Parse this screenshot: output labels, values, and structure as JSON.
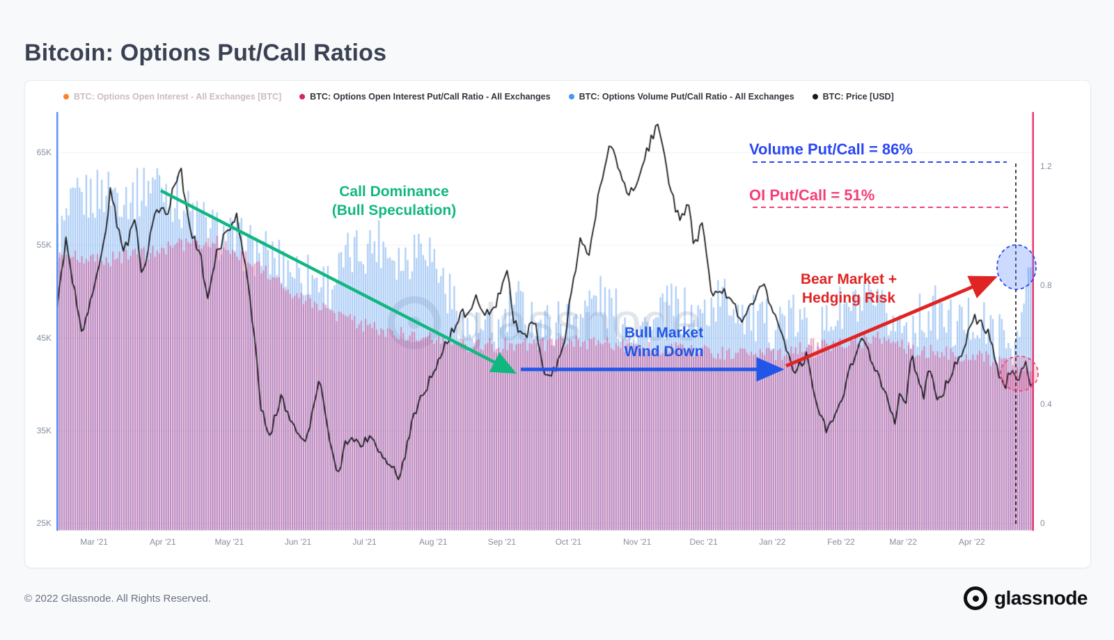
{
  "page": {
    "title": "Bitcoin: Options Put/Call Ratios",
    "footer_copyright": "© 2022 Glassnode. All Rights Reserved.",
    "brand": "glassnode",
    "watermark": "glassnode"
  },
  "legend": {
    "items": [
      {
        "label": "BTC: Options Open Interest - All Exchanges [BTC]",
        "color": "#ff7f2a",
        "muted": true
      },
      {
        "label": "BTC: Options Open Interest Put/Call Ratio - All Exchanges",
        "color": "#d6246e",
        "muted": false
      },
      {
        "label": "BTC: Options Volume Put/Call Ratio - All Exchanges",
        "color": "#4596f7",
        "muted": false
      },
      {
        "label": "BTC: Price [USD]",
        "color": "#17191c",
        "muted": false
      }
    ]
  },
  "axes": {
    "left": {
      "ticks": [
        "65K",
        "55K",
        "45K",
        "35K",
        "25K"
      ],
      "values": [
        65,
        55,
        45,
        35,
        25
      ]
    },
    "right": {
      "ticks": [
        "1.2",
        "0.8",
        "0.4",
        "0"
      ],
      "values": [
        1.2,
        0.8,
        0.4,
        0
      ]
    },
    "months": [
      "Mar '21",
      "Apr '21",
      "May '21",
      "Jun '21",
      "Jul '21",
      "Aug '21",
      "Sep '21",
      "Oct '21",
      "Nov '21",
      "Dec '21",
      "Jan '22",
      "Feb '22",
      "Mar '22",
      "Apr '22"
    ]
  },
  "annotations": {
    "call_dominance": {
      "line1": "Call Dominance",
      "line2": "(Bull Speculation)",
      "color": "#10b77f"
    },
    "bull_wind_down": {
      "line1": "Bull Market",
      "line2": "Wind Down",
      "color": "#2156e8"
    },
    "bear_market": {
      "line1": "Bear Market +",
      "line2": "Hedging Risk",
      "color": "#e02424"
    },
    "volume_label": {
      "text": "Volume Put/Call = 86%",
      "color": "#2946f5"
    },
    "oi_label": {
      "text": "OI Put/Call = 51%",
      "color": "#f43f75"
    }
  },
  "colors": {
    "axis_left": "#5b8ff9",
    "axis_right": "#e8356d",
    "grid": "#edf0f5",
    "price_line": "#17191c",
    "volume_fill": "rgba(77,148,235,0.50)",
    "oi_fill": "rgba(214,36,110,0.45)"
  },
  "chart_data": {
    "type": "mixed",
    "x_axis": {
      "labels": [
        "Mar '21",
        "Apr '21",
        "May '21",
        "Jun '21",
        "Jul '21",
        "Aug '21",
        "Sep '21",
        "Oct '21",
        "Nov '21",
        "Dec '21",
        "Jan '22",
        "Feb '22",
        "Mar '22",
        "Apr '22"
      ],
      "start": "mid-Feb 2021",
      "end": "late Apr 2022"
    },
    "y_left": {
      "label": "BTC Price [USD]",
      "ticks": [
        "25K",
        "35K",
        "45K",
        "55K",
        "65K"
      ],
      "range_thousForUSD": [
        25,
        68.5
      ]
    },
    "y_right": {
      "label": "Put/Call Ratio",
      "ticks": [
        0,
        0.4,
        0.8,
        1.2
      ],
      "range": [
        0,
        1.33
      ]
    },
    "legend_position": "top",
    "grid": true,
    "highlights": {
      "volume_put_call_pct": 86,
      "oi_put_call_pct": 51
    },
    "series": [
      {
        "id": "open_interest",
        "name": "BTC: Options Open Interest - All Exchanges [BTC]",
        "type": "bar",
        "color": "#ff7f2a",
        "visible": false
      },
      {
        "id": "price",
        "name": "BTC: Price [USD]",
        "type": "line",
        "color": "#17191c",
        "unit": "K USD",
        "keyframes": [
          [
            0,
            48
          ],
          [
            0.009,
            55.5
          ],
          [
            0.018,
            50
          ],
          [
            0.025,
            45.5
          ],
          [
            0.035,
            49
          ],
          [
            0.046,
            54
          ],
          [
            0.055,
            61
          ],
          [
            0.062,
            57
          ],
          [
            0.069,
            54.5
          ],
          [
            0.08,
            57.5
          ],
          [
            0.087,
            51.5
          ],
          [
            0.101,
            59
          ],
          [
            0.113,
            58.5
          ],
          [
            0.126,
            63.5
          ],
          [
            0.138,
            56
          ],
          [
            0.147,
            54
          ],
          [
            0.154,
            49.5
          ],
          [
            0.163,
            54
          ],
          [
            0.184,
            58.5
          ],
          [
            0.198,
            49.5
          ],
          [
            0.209,
            37.5
          ],
          [
            0.218,
            34.5
          ],
          [
            0.23,
            38.5
          ],
          [
            0.241,
            36
          ],
          [
            0.255,
            33.5
          ],
          [
            0.269,
            40.5
          ],
          [
            0.287,
            29.8
          ],
          [
            0.297,
            34
          ],
          [
            0.308,
            33.5
          ],
          [
            0.322,
            34.2
          ],
          [
            0.352,
            29.8
          ],
          [
            0.366,
            37
          ],
          [
            0.379,
            39.5
          ],
          [
            0.395,
            43.8
          ],
          [
            0.412,
            47
          ],
          [
            0.43,
            49.3
          ],
          [
            0.444,
            47
          ],
          [
            0.462,
            52.7
          ],
          [
            0.467,
            46.9
          ],
          [
            0.48,
            45.1
          ],
          [
            0.49,
            47.3
          ],
          [
            0.499,
            40.7
          ],
          [
            0.513,
            42
          ],
          [
            0.52,
            43.8
          ],
          [
            0.524,
            48.2
          ],
          [
            0.536,
            55.3
          ],
          [
            0.545,
            54
          ],
          [
            0.556,
            61
          ],
          [
            0.568,
            66
          ],
          [
            0.584,
            60.7
          ],
          [
            0.593,
            61.3
          ],
          [
            0.616,
            68.5
          ],
          [
            0.63,
            60.5
          ],
          [
            0.637,
            58.1
          ],
          [
            0.648,
            59
          ],
          [
            0.653,
            54.8
          ],
          [
            0.662,
            57.3
          ],
          [
            0.671,
            49.3
          ],
          [
            0.683,
            50.5
          ],
          [
            0.703,
            46.7
          ],
          [
            0.724,
            50.8
          ],
          [
            0.74,
            46.2
          ],
          [
            0.756,
            41.6
          ],
          [
            0.768,
            43
          ],
          [
            0.782,
            36.5
          ],
          [
            0.789,
            35
          ],
          [
            0.8,
            37
          ],
          [
            0.821,
            44.2
          ],
          [
            0.828,
            44.5
          ],
          [
            0.844,
            40.5
          ],
          [
            0.855,
            37.2
          ],
          [
            0.86,
            35
          ],
          [
            0.862,
            38.5
          ],
          [
            0.871,
            37.9
          ],
          [
            0.876,
            43.5
          ],
          [
            0.888,
            38.4
          ],
          [
            0.894,
            41.9
          ],
          [
            0.903,
            37.8
          ],
          [
            0.915,
            41
          ],
          [
            0.931,
            44.3
          ],
          [
            0.94,
            47.5
          ],
          [
            0.954,
            45.5
          ],
          [
            0.961,
            43.2
          ],
          [
            0.97,
            39.5
          ],
          [
            0.977,
            41.1
          ],
          [
            0.986,
            40.8
          ],
          [
            0.993,
            42.1
          ],
          [
            1,
            39.5
          ]
        ]
      },
      {
        "id": "volume",
        "name": "BTC: Options Volume Put/Call Ratio - All Exchanges",
        "type": "bar",
        "color": "#4596f7",
        "end_value": 0.86,
        "keyframes": [
          [
            0,
            0.95
          ],
          [
            0.02,
            1.08
          ],
          [
            0.05,
            1.12
          ],
          [
            0.08,
            1.1
          ],
          [
            0.1,
            1.16
          ],
          [
            0.13,
            1.06
          ],
          [
            0.16,
            0.98
          ],
          [
            0.2,
            0.92
          ],
          [
            0.24,
            0.86
          ],
          [
            0.28,
            0.8
          ],
          [
            0.3,
            0.9
          ],
          [
            0.33,
            0.95
          ],
          [
            0.355,
            0.88
          ],
          [
            0.375,
            0.97
          ],
          [
            0.4,
            0.78
          ],
          [
            0.42,
            0.64
          ],
          [
            0.45,
            0.63
          ],
          [
            0.47,
            0.74
          ],
          [
            0.5,
            0.66
          ],
          [
            0.53,
            0.7
          ],
          [
            0.555,
            0.76
          ],
          [
            0.58,
            0.68
          ],
          [
            0.61,
            0.65
          ],
          [
            0.63,
            0.73
          ],
          [
            0.655,
            0.68
          ],
          [
            0.68,
            0.76
          ],
          [
            0.7,
            0.73
          ],
          [
            0.72,
            0.66
          ],
          [
            0.75,
            0.69
          ],
          [
            0.78,
            0.63
          ],
          [
            0.8,
            0.71
          ],
          [
            0.83,
            0.73
          ],
          [
            0.85,
            0.69
          ],
          [
            0.87,
            0.66
          ],
          [
            0.9,
            0.71
          ],
          [
            0.92,
            0.66
          ],
          [
            0.94,
            0.69
          ],
          [
            0.96,
            0.63
          ],
          [
            0.985,
            0.6
          ],
          [
            0.997,
            0.86
          ],
          [
            1,
            0.86
          ]
        ]
      },
      {
        "id": "oi",
        "name": "BTC: Options Open Interest Put/Call Ratio - All Exchanges",
        "type": "bar",
        "color": "#d6246e",
        "end_value": 0.51,
        "keyframes": [
          [
            0,
            0.9
          ],
          [
            0.04,
            0.88
          ],
          [
            0.08,
            0.9
          ],
          [
            0.12,
            0.93
          ],
          [
            0.16,
            0.95
          ],
          [
            0.2,
            0.88
          ],
          [
            0.24,
            0.78
          ],
          [
            0.27,
            0.72
          ],
          [
            0.3,
            0.68
          ],
          [
            0.34,
            0.64
          ],
          [
            0.38,
            0.63
          ],
          [
            0.42,
            0.6
          ],
          [
            0.46,
            0.6
          ],
          [
            0.5,
            0.6
          ],
          [
            0.54,
            0.61
          ],
          [
            0.58,
            0.6
          ],
          [
            0.62,
            0.59
          ],
          [
            0.66,
            0.58
          ],
          [
            0.7,
            0.57
          ],
          [
            0.74,
            0.57
          ],
          [
            0.77,
            0.6
          ],
          [
            0.8,
            0.6
          ],
          [
            0.84,
            0.62
          ],
          [
            0.88,
            0.58
          ],
          [
            0.92,
            0.57
          ],
          [
            0.96,
            0.55
          ],
          [
            0.99,
            0.51
          ],
          [
            1,
            0.51
          ]
        ]
      }
    ]
  }
}
